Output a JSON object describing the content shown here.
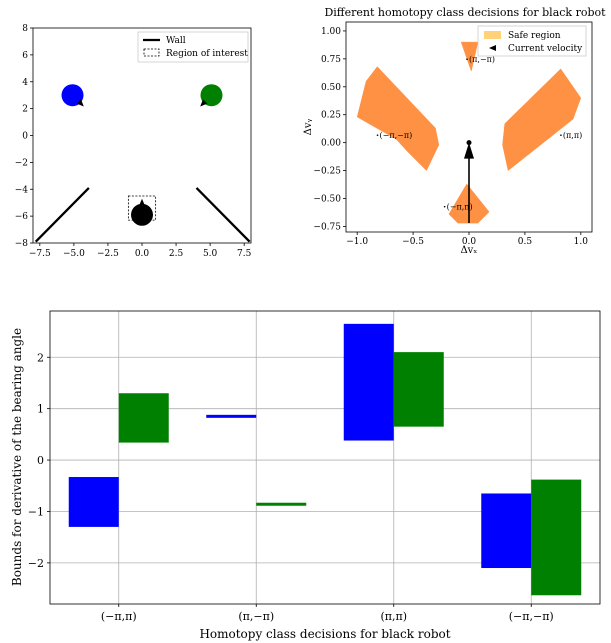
{
  "chart_data": [
    {
      "type": "scatter",
      "title": "",
      "xlabel": "",
      "ylabel": "",
      "xlim": [
        -8,
        8
      ],
      "ylim": [
        -8,
        8
      ],
      "xticks": [
        "−7.5",
        "−5.0",
        "−2.5",
        "0.0",
        "2.5",
        "5.0",
        "7.5"
      ],
      "xtick_values": [
        -7.5,
        -5.0,
        -2.5,
        0.0,
        2.5,
        5.0,
        7.5
      ],
      "yticks": [
        "−8",
        "−6",
        "−4",
        "−2",
        "0",
        "2",
        "4",
        "6",
        "8"
      ],
      "ytick_values": [
        -8,
        -6,
        -4,
        -2,
        0,
        2,
        4,
        6,
        8
      ],
      "grid": false,
      "legend": {
        "placement": "top-right",
        "entries": [
          "Wall",
          "Region of interest"
        ]
      },
      "walls": [
        {
          "x": [
            -7.8,
            -3.9
          ],
          "y": [
            -7.9,
            -3.9
          ]
        },
        {
          "x": [
            4.0,
            7.9
          ],
          "y": [
            -3.9,
            -7.9
          ]
        }
      ],
      "region_of_interest": {
        "x": [
          -1.0,
          1.0
        ],
        "y": [
          -6.3,
          -4.5
        ]
      },
      "robots": [
        {
          "name": "blue",
          "x": -5.1,
          "y": 3.0,
          "color": "#0000ff",
          "heading": [
            1,
            -1
          ]
        },
        {
          "name": "green",
          "x": 5.1,
          "y": 3.0,
          "color": "#008000",
          "heading": [
            -1,
            -1
          ]
        },
        {
          "name": "black",
          "x": 0.0,
          "y": -5.9,
          "color": "#000000",
          "heading": [
            0,
            1
          ]
        }
      ]
    },
    {
      "type": "area",
      "title": "Different homotopy class decisions for black robot",
      "xlabel": "Δvₓ",
      "ylabel": "Δvᵧ",
      "xlim": [
        -1.1,
        1.1
      ],
      "ylim": [
        -0.8,
        1.08
      ],
      "xticks": [
        "−1.0",
        "−0.5",
        "0.0",
        "0.5",
        "1.0"
      ],
      "xtick_values": [
        -1.0,
        -0.5,
        0.0,
        0.5,
        1.0
      ],
      "yticks": [
        "−0.75",
        "−0.50",
        "−0.25",
        "0.00",
        "0.25",
        "0.50",
        "0.75",
        "1.00"
      ],
      "ytick_values": [
        -0.75,
        -0.5,
        -0.25,
        0.0,
        0.25,
        0.5,
        0.75,
        1.0
      ],
      "grid": false,
      "legend": {
        "placement": "top-right",
        "entries": [
          "Safe region",
          "Current velocity"
        ]
      },
      "regions": [
        {
          "label": "(−π,−π)",
          "label_at": [
            -0.8,
            0.04
          ],
          "polygon": [
            [
              -1.0,
              0.23
            ],
            [
              -0.92,
              0.55
            ],
            [
              -0.82,
              0.68
            ],
            [
              -0.3,
              0.13
            ],
            [
              -0.27,
              -0.02
            ],
            [
              -0.38,
              -0.25
            ],
            [
              -0.55,
              -0.08
            ],
            [
              -0.65,
              0.03
            ]
          ]
        },
        {
          "label": "(π,π)",
          "label_at": [
            0.84,
            0.04
          ],
          "polygon": [
            [
              0.3,
              -0.02
            ],
            [
              0.35,
              -0.25
            ],
            [
              0.93,
              0.21
            ],
            [
              1.0,
              0.4
            ],
            [
              0.82,
              0.66
            ],
            [
              0.32,
              0.17
            ]
          ]
        },
        {
          "label": "(π,−π)",
          "label_at": [
            0.0,
            0.72
          ],
          "polygon": [
            [
              -0.07,
              0.9
            ],
            [
              0.08,
              0.9
            ],
            [
              0.02,
              0.64
            ]
          ]
        },
        {
          "label": "(−π,π)",
          "label_at": [
            -0.2,
            -0.6
          ],
          "polygon": [
            [
              -0.18,
              -0.64
            ],
            [
              -0.02,
              -0.37
            ],
            [
              0.18,
              -0.62
            ],
            [
              0.08,
              -0.72
            ],
            [
              -0.1,
              -0.72
            ]
          ]
        }
      ],
      "current_velocity": {
        "x": 0.0,
        "y0": -0.72,
        "y1": 0.0
      }
    },
    {
      "type": "bar",
      "title": "",
      "xlabel": "Homotopy class decisions for black robot",
      "ylabel": "Bounds for derivative of the bearing angle",
      "categories": [
        "(−π,π)",
        "(π,−π)",
        "(π,π)",
        "(−π,−π)"
      ],
      "yticks": [
        "−2",
        "−1",
        "0",
        "1",
        "2"
      ],
      "ytick_values": [
        -2,
        -1,
        0,
        1,
        2
      ],
      "ylim": [
        -2.8,
        2.9
      ],
      "grid": true,
      "series": [
        {
          "color": "#0000ff",
          "lower": [
            -1.3,
            0.83,
            0.38,
            -2.1
          ],
          "upper": [
            -0.33,
            0.88,
            2.65,
            -0.65
          ]
        },
        {
          "color": "#008000",
          "lower": [
            0.34,
            -0.87,
            0.65,
            -2.63
          ],
          "upper": [
            1.3,
            -0.83,
            2.1,
            -0.38
          ]
        }
      ]
    }
  ]
}
